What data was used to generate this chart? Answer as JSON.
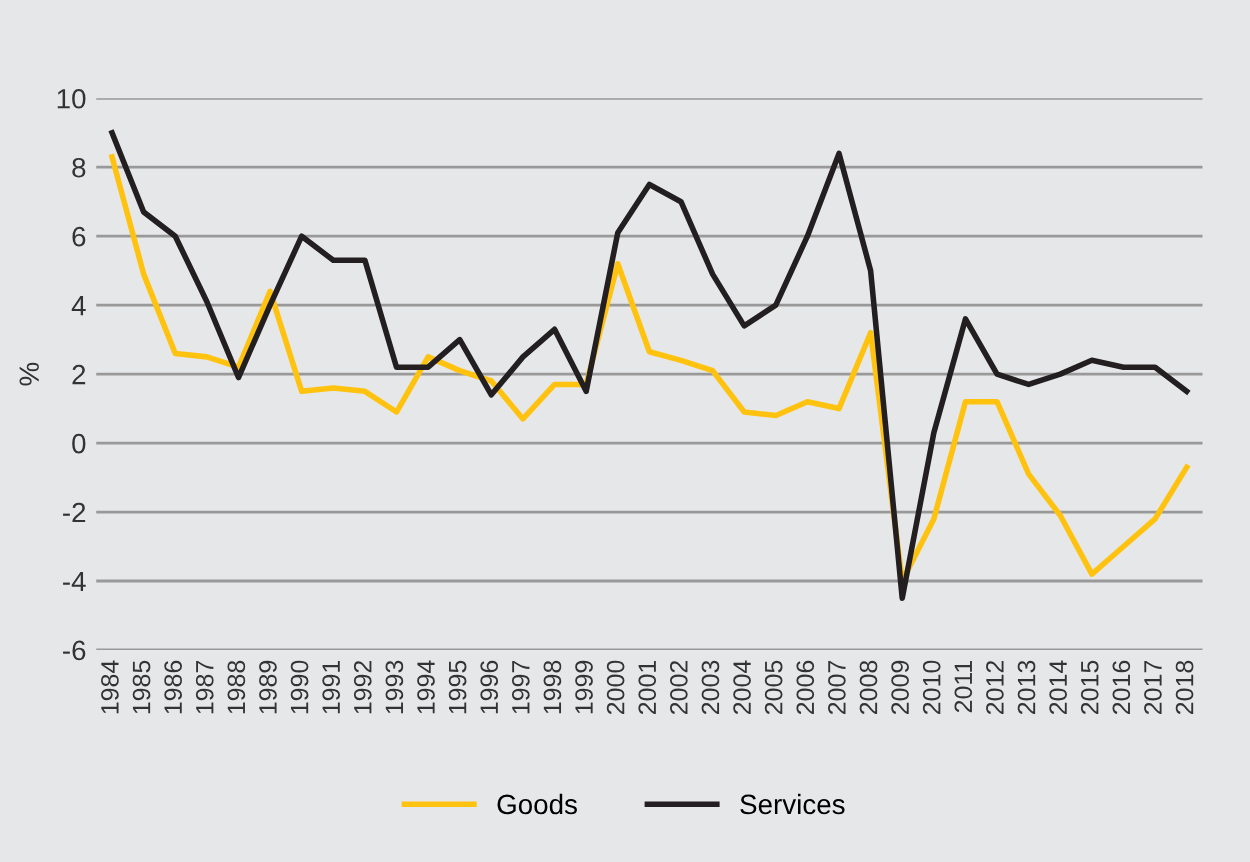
{
  "chart_data": {
    "type": "line",
    "ylabel": "%",
    "categories": [
      "1984",
      "1985",
      "1986",
      "1987",
      "1988",
      "1989",
      "1990",
      "1991",
      "1992",
      "1993",
      "1994",
      "1995",
      "1996",
      "1997",
      "1998",
      "1999",
      "2000",
      "2001",
      "2002",
      "2003",
      "2004",
      "2005",
      "2006",
      "2007",
      "2008",
      "2009",
      "2010",
      "2011",
      "2012",
      "2013",
      "2014",
      "2015",
      "2016",
      "2017",
      "2018"
    ],
    "series": [
      {
        "name": "Goods",
        "color": "#ffc20e",
        "values": [
          8.3,
          4.9,
          2.6,
          2.5,
          2.2,
          4.4,
          1.5,
          1.6,
          1.5,
          0.9,
          2.5,
          2.1,
          1.8,
          0.7,
          1.7,
          1.7,
          5.2,
          2.65,
          2.4,
          2.1,
          0.9,
          0.8,
          1.2,
          1.0,
          3.2,
          -4.0,
          -2.2,
          1.2,
          1.2,
          -0.9,
          -2.1,
          -3.8,
          -3.0,
          -2.2,
          -0.7
        ]
      },
      {
        "name": "Services",
        "color": "#231f20",
        "values": [
          9.0,
          6.7,
          6.0,
          4.1,
          1.9,
          4.0,
          6.0,
          5.3,
          5.3,
          2.2,
          2.2,
          3.0,
          1.4,
          2.5,
          3.3,
          1.5,
          6.1,
          7.5,
          7.0,
          4.9,
          3.4,
          4.0,
          6.0,
          8.4,
          5.0,
          -4.5,
          0.3,
          3.6,
          2.0,
          1.7,
          2.0,
          2.4,
          2.2,
          2.2,
          1.5
        ]
      }
    ],
    "ylim": [
      -6,
      10
    ],
    "yticks": [
      -6,
      -4,
      -2,
      0,
      2,
      4,
      6,
      8,
      10
    ],
    "grid": "y",
    "legend": "bottom",
    "marker": "none",
    "line_style": "solid"
  }
}
